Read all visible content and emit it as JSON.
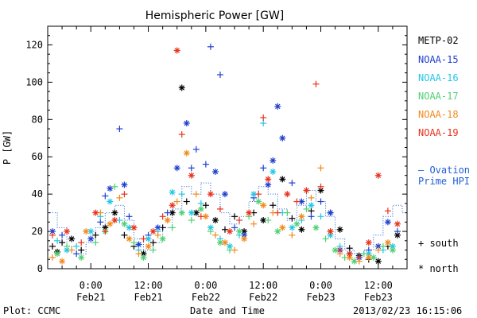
{
  "chart_data": {
    "type": "scatter",
    "title": "Hemispheric Power [GW]",
    "xlabel": "Date and Time",
    "ylabel": "P [GW]",
    "x_unit": "hours",
    "xlim": [
      -9,
      66
    ],
    "ylim": [
      0,
      130
    ],
    "yticks": [
      0,
      20,
      40,
      60,
      80,
      100,
      120
    ],
    "xticks": [
      {
        "x": 0,
        "top": "0:00",
        "bottom": "Feb21"
      },
      {
        "x": 12,
        "top": "12:00",
        "bottom": "Feb21"
      },
      {
        "x": 24,
        "top": "0:00",
        "bottom": "Feb22"
      },
      {
        "x": 36,
        "top": "12:00",
        "bottom": "Feb22"
      },
      {
        "x": 48,
        "top": "0:00",
        "bottom": "Feb23"
      },
      {
        "x": 60,
        "top": "12:00",
        "bottom": "Feb23"
      }
    ],
    "grid": "none",
    "legend_position": "right",
    "series": [
      {
        "name": "METP-02",
        "color": "#000000",
        "points": [
          [
            -8,
            12,
            "s"
          ],
          [
            -7,
            9,
            "n"
          ],
          [
            -6,
            14,
            "s"
          ],
          [
            -4,
            16,
            "n"
          ],
          [
            -2,
            10,
            "s"
          ],
          [
            1,
            18,
            "s"
          ],
          [
            3,
            22,
            "n"
          ],
          [
            5,
            30,
            "n"
          ],
          [
            7,
            18,
            "s"
          ],
          [
            9,
            12,
            "s"
          ],
          [
            11,
            8,
            "n"
          ],
          [
            13,
            14,
            "s"
          ],
          [
            15,
            22,
            "s"
          ],
          [
            17,
            30,
            "n"
          ],
          [
            19,
            97,
            "n"
          ],
          [
            20,
            36,
            "s"
          ],
          [
            22,
            30,
            "n"
          ],
          [
            24,
            34,
            "s"
          ],
          [
            26,
            26,
            "n"
          ],
          [
            28,
            21,
            "s"
          ],
          [
            30,
            28,
            "s"
          ],
          [
            32,
            20,
            "n"
          ],
          [
            34,
            30,
            "s"
          ],
          [
            36,
            26,
            "n"
          ],
          [
            38,
            34,
            "s"
          ],
          [
            40,
            48,
            "n"
          ],
          [
            42,
            27,
            "s"
          ],
          [
            44,
            21,
            "n"
          ],
          [
            46,
            31,
            "s"
          ],
          [
            48,
            42,
            "n"
          ],
          [
            50,
            30,
            "s"
          ],
          [
            52,
            21,
            "n"
          ],
          [
            54,
            11,
            "s"
          ],
          [
            56,
            7,
            "n"
          ],
          [
            58,
            5,
            "s"
          ],
          [
            60,
            4,
            "n"
          ],
          [
            62,
            12,
            "s"
          ],
          [
            64,
            18,
            "n"
          ]
        ]
      },
      {
        "name": "NOAA-15",
        "color": "#1f3fd0",
        "points": [
          [
            -8,
            20,
            "n"
          ],
          [
            -6,
            18,
            "s"
          ],
          [
            -3,
            8,
            "s"
          ],
          [
            0,
            16,
            "n"
          ],
          [
            2,
            25,
            "s"
          ],
          [
            3,
            39,
            "s"
          ],
          [
            4,
            43,
            "n"
          ],
          [
            6,
            75,
            "s"
          ],
          [
            7,
            45,
            "n"
          ],
          [
            8,
            28,
            "s"
          ],
          [
            10,
            13,
            "n"
          ],
          [
            12,
            18,
            "s"
          ],
          [
            14,
            22,
            "n"
          ],
          [
            16,
            30,
            "s"
          ],
          [
            18,
            54,
            "n"
          ],
          [
            20,
            78,
            "n"
          ],
          [
            21,
            54,
            "s"
          ],
          [
            22,
            64,
            "s"
          ],
          [
            24,
            56,
            "s"
          ],
          [
            25,
            119,
            "s"
          ],
          [
            26,
            52,
            "n"
          ],
          [
            27,
            104,
            "s"
          ],
          [
            28,
            40,
            "n"
          ],
          [
            30,
            22,
            "s"
          ],
          [
            32,
            18,
            "n"
          ],
          [
            34,
            38,
            "s"
          ],
          [
            36,
            54,
            "s"
          ],
          [
            37,
            45,
            "n"
          ],
          [
            38,
            58,
            "n"
          ],
          [
            39,
            87,
            "n"
          ],
          [
            40,
            70,
            "n"
          ],
          [
            42,
            46,
            "s"
          ],
          [
            44,
            36,
            "n"
          ],
          [
            46,
            28,
            "s"
          ],
          [
            48,
            36,
            "s"
          ],
          [
            50,
            30,
            "n"
          ],
          [
            52,
            10,
            "n"
          ],
          [
            54,
            8,
            "s"
          ],
          [
            56,
            6,
            "n"
          ],
          [
            58,
            10,
            "s"
          ],
          [
            60,
            12,
            "n"
          ],
          [
            62,
            25,
            "n"
          ],
          [
            64,
            20,
            "s"
          ]
        ]
      },
      {
        "name": "NOAA-16",
        "color": "#22c7e6",
        "points": [
          [
            -7,
            15,
            "s"
          ],
          [
            -5,
            10,
            "n"
          ],
          [
            -3,
            12,
            "s"
          ],
          [
            0,
            20,
            "n"
          ],
          [
            2,
            28,
            "s"
          ],
          [
            4,
            36,
            "n"
          ],
          [
            6,
            26,
            "s"
          ],
          [
            8,
            22,
            "n"
          ],
          [
            10,
            10,
            "s"
          ],
          [
            12,
            16,
            "n"
          ],
          [
            14,
            20,
            "s"
          ],
          [
            17,
            41,
            "n"
          ],
          [
            19,
            40,
            "s"
          ],
          [
            21,
            30,
            "n"
          ],
          [
            23,
            35,
            "s"
          ],
          [
            25,
            22,
            "n"
          ],
          [
            27,
            16,
            "s"
          ],
          [
            29,
            12,
            "n"
          ],
          [
            31,
            18,
            "s"
          ],
          [
            34,
            40,
            "n"
          ],
          [
            36,
            78,
            "s"
          ],
          [
            38,
            52,
            "n"
          ],
          [
            40,
            30,
            "s"
          ],
          [
            42,
            22,
            "n"
          ],
          [
            44,
            26,
            "s"
          ],
          [
            46,
            34,
            "n"
          ],
          [
            48,
            28,
            "s"
          ],
          [
            50,
            18,
            "n"
          ],
          [
            52,
            12,
            "s"
          ],
          [
            54,
            8,
            "n"
          ],
          [
            56,
            6,
            "s"
          ],
          [
            58,
            8,
            "n"
          ],
          [
            61,
            10,
            "s"
          ],
          [
            63,
            12,
            "n"
          ]
        ]
      },
      {
        "name": "NOAA-17",
        "color": "#4fd072",
        "points": [
          [
            -7,
            8,
            "n"
          ],
          [
            -5,
            12,
            "s"
          ],
          [
            -2,
            6,
            "n"
          ],
          [
            1,
            14,
            "s"
          ],
          [
            3,
            20,
            "n"
          ],
          [
            5,
            44,
            "s"
          ],
          [
            7,
            24,
            "n"
          ],
          [
            9,
            14,
            "s"
          ],
          [
            11,
            6,
            "n"
          ],
          [
            13,
            10,
            "s"
          ],
          [
            15,
            16,
            "n"
          ],
          [
            17,
            22,
            "s"
          ],
          [
            19,
            30,
            "n"
          ],
          [
            21,
            26,
            "s"
          ],
          [
            23,
            32,
            "n"
          ],
          [
            25,
            20,
            "s"
          ],
          [
            27,
            14,
            "n"
          ],
          [
            29,
            10,
            "s"
          ],
          [
            31,
            20,
            "n"
          ],
          [
            33,
            28,
            "s"
          ],
          [
            35,
            36,
            "n"
          ],
          [
            37,
            26,
            "s"
          ],
          [
            39,
            20,
            "n"
          ],
          [
            41,
            30,
            "s"
          ],
          [
            43,
            24,
            "n"
          ],
          [
            45,
            32,
            "s"
          ],
          [
            47,
            22,
            "n"
          ],
          [
            49,
            16,
            "s"
          ],
          [
            51,
            10,
            "n"
          ],
          [
            53,
            6,
            "s"
          ],
          [
            55,
            4,
            "n"
          ],
          [
            57,
            8,
            "s"
          ],
          [
            59,
            6,
            "n"
          ],
          [
            61,
            12,
            "s"
          ],
          [
            63,
            10,
            "n"
          ]
        ]
      },
      {
        "name": "NOAA-18",
        "color": "#f08a1c",
        "points": [
          [
            -8,
            6,
            "s"
          ],
          [
            -6,
            4,
            "n"
          ],
          [
            -4,
            10,
            "s"
          ],
          [
            -1,
            20,
            "n"
          ],
          [
            2,
            30,
            "s"
          ],
          [
            4,
            24,
            "n"
          ],
          [
            6,
            38,
            "s"
          ],
          [
            8,
            16,
            "n"
          ],
          [
            10,
            8,
            "s"
          ],
          [
            12,
            12,
            "n"
          ],
          [
            14,
            18,
            "s"
          ],
          [
            16,
            26,
            "n"
          ],
          [
            18,
            36,
            "s"
          ],
          [
            20,
            62,
            "n"
          ],
          [
            22,
            40,
            "s"
          ],
          [
            24,
            28,
            "n"
          ],
          [
            26,
            18,
            "s"
          ],
          [
            28,
            14,
            "n"
          ],
          [
            30,
            10,
            "s"
          ],
          [
            32,
            16,
            "n"
          ],
          [
            34,
            24,
            "s"
          ],
          [
            36,
            34,
            "n"
          ],
          [
            38,
            30,
            "s"
          ],
          [
            40,
            22,
            "n"
          ],
          [
            42,
            18,
            "s"
          ],
          [
            44,
            28,
            "n"
          ],
          [
            46,
            38,
            "s"
          ],
          [
            48,
            54,
            "s"
          ],
          [
            50,
            20,
            "n"
          ],
          [
            52,
            8,
            "s"
          ],
          [
            54,
            6,
            "n"
          ],
          [
            56,
            4,
            "s"
          ],
          [
            58,
            6,
            "n"
          ],
          [
            60,
            10,
            "s"
          ],
          [
            62,
            14,
            "n"
          ]
        ]
      },
      {
        "name": "NOAA-19",
        "color": "#e8321c",
        "points": [
          [
            -8,
            18,
            "s"
          ],
          [
            -5,
            20,
            "n"
          ],
          [
            -2,
            14,
            "s"
          ],
          [
            1,
            30,
            "n"
          ],
          [
            3,
            20,
            "s"
          ],
          [
            5,
            26,
            "n"
          ],
          [
            7,
            40,
            "s"
          ],
          [
            9,
            22,
            "n"
          ],
          [
            11,
            16,
            "s"
          ],
          [
            13,
            20,
            "n"
          ],
          [
            15,
            28,
            "s"
          ],
          [
            17,
            34,
            "n"
          ],
          [
            18,
            117,
            "n"
          ],
          [
            19,
            72,
            "s"
          ],
          [
            21,
            50,
            "n"
          ],
          [
            23,
            28,
            "s"
          ],
          [
            25,
            40,
            "n"
          ],
          [
            27,
            32,
            "s"
          ],
          [
            29,
            20,
            "n"
          ],
          [
            31,
            26,
            "s"
          ],
          [
            33,
            30,
            "n"
          ],
          [
            35,
            40,
            "s"
          ],
          [
            36,
            81,
            "s"
          ],
          [
            37,
            48,
            "n"
          ],
          [
            39,
            30,
            "s"
          ],
          [
            41,
            40,
            "n"
          ],
          [
            43,
            36,
            "s"
          ],
          [
            45,
            42,
            "n"
          ],
          [
            47,
            99,
            "s"
          ],
          [
            48,
            44,
            "s"
          ],
          [
            50,
            20,
            "n"
          ],
          [
            52,
            10,
            "s"
          ],
          [
            54,
            8,
            "n"
          ],
          [
            56,
            6,
            "s"
          ],
          [
            58,
            14,
            "n"
          ],
          [
            60,
            50,
            "n"
          ],
          [
            62,
            31,
            "s"
          ],
          [
            64,
            24,
            "n"
          ]
        ]
      }
    ],
    "hpi_step": [
      [
        -9,
        30
      ],
      [
        -7,
        22
      ],
      [
        -5,
        12
      ],
      [
        -3,
        8
      ],
      [
        -1,
        14
      ],
      [
        1,
        22
      ],
      [
        3,
        30
      ],
      [
        5,
        34
      ],
      [
        7,
        26
      ],
      [
        9,
        16
      ],
      [
        11,
        10
      ],
      [
        13,
        14
      ],
      [
        15,
        22
      ],
      [
        17,
        32
      ],
      [
        19,
        44
      ],
      [
        21,
        40
      ],
      [
        23,
        46
      ],
      [
        25,
        40
      ],
      [
        27,
        30
      ],
      [
        29,
        24
      ],
      [
        31,
        28
      ],
      [
        33,
        36
      ],
      [
        35,
        44
      ],
      [
        37,
        40
      ],
      [
        39,
        32
      ],
      [
        41,
        26
      ],
      [
        43,
        34
      ],
      [
        45,
        42
      ],
      [
        47,
        36
      ],
      [
        49,
        28
      ],
      [
        51,
        16
      ],
      [
        53,
        10
      ],
      [
        55,
        8
      ],
      [
        57,
        10
      ],
      [
        59,
        18
      ],
      [
        61,
        28
      ],
      [
        63,
        34
      ],
      [
        65,
        30
      ]
    ]
  },
  "legend": [
    {
      "label": "METP-02",
      "color": "#000000"
    },
    {
      "label": "NOAA-15",
      "color": "#1f3fd0"
    },
    {
      "label": "NOAA-16",
      "color": "#22c7e6"
    },
    {
      "label": "NOAA-17",
      "color": "#4fd072"
    },
    {
      "label": "NOAA-18",
      "color": "#f08a1c"
    },
    {
      "label": "NOAA-19",
      "color": "#e8321c"
    }
  ],
  "hpi_legend": {
    "line1": "— Ovation",
    "line2": "Prime HPI",
    "color": "#1f5fd6"
  },
  "marker_key": {
    "south": "+ south",
    "north": "* north"
  },
  "footer": {
    "left": "Plot: CCMC",
    "right": "2013/02/23 16:15:06"
  }
}
